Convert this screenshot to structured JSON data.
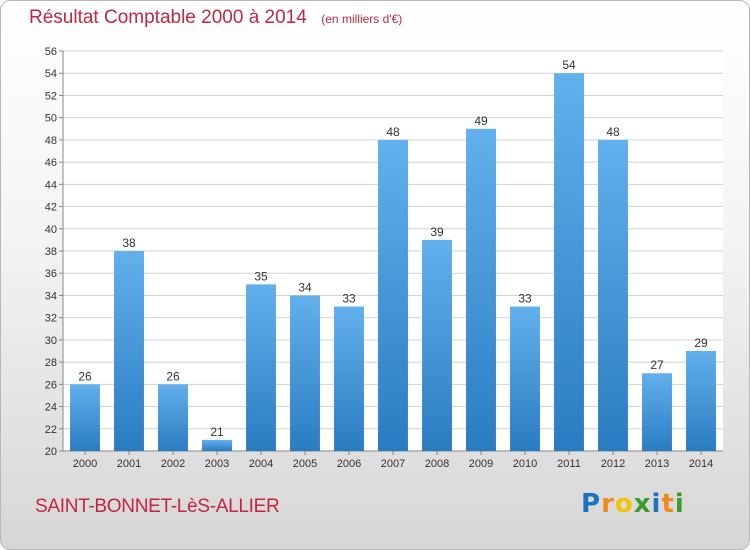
{
  "header": {
    "title": "Résultat Comptable 2000 à 2014",
    "subtitle": "(en milliers d'€)"
  },
  "footer": {
    "commune": "SAINT-BONNET-LèS-ALLIER",
    "logo_letters": [
      {
        "ch": "P",
        "color": "#1e73be"
      },
      {
        "ch": "r",
        "color": "#f08a1c"
      },
      {
        "ch": "o",
        "color": "#f4c400"
      },
      {
        "ch": "x",
        "color": "#3a9b2e"
      },
      {
        "ch": "i",
        "color": "#1e73be"
      },
      {
        "ch": "t",
        "color": "#f08a1c"
      },
      {
        "ch": "i",
        "color": "#3a9b2e"
      }
    ]
  },
  "colors": {
    "accent": "#c4263f",
    "bar_top": "#62b0ec",
    "bar_bottom": "#2a7cc2",
    "grid": "#d2d2d2"
  },
  "chart_data": {
    "type": "bar",
    "title": "Résultat Comptable 2000 à 2014",
    "subtitle": "(en milliers d'€)",
    "categories": [
      "2000",
      "2001",
      "2002",
      "2003",
      "2004",
      "2005",
      "2006",
      "2007",
      "2008",
      "2009",
      "2010",
      "2011",
      "2012",
      "2013",
      "2014"
    ],
    "values": [
      26,
      38,
      26,
      21,
      35,
      34,
      33,
      48,
      39,
      49,
      33,
      54,
      48,
      27,
      29
    ],
    "ylim": [
      20,
      56
    ],
    "ytick_step": 2,
    "grid": true,
    "xlabel": "",
    "ylabel": ""
  }
}
